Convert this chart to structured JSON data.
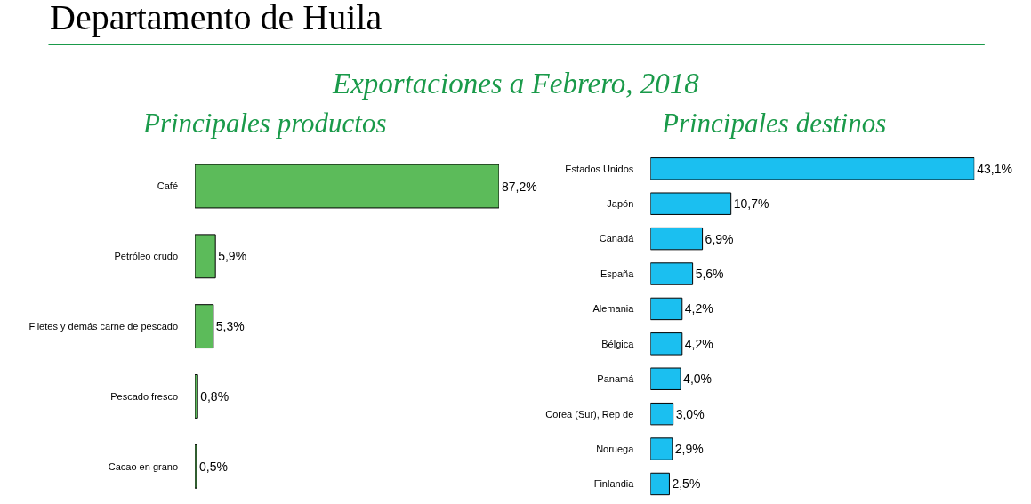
{
  "chart_data": [
    {
      "type": "bar",
      "orientation": "horizontal",
      "title": "Principales productos",
      "annotations": [
        "Departamento de Huila",
        "Exportaciones a Febrero, 2018"
      ],
      "categories": [
        "Café",
        "Petróleo crudo",
        "Filetes y demás carne de pescado",
        "Pescado fresco",
        "Cacao en grano"
      ],
      "series": [
        {
          "color": "#5cbb5a",
          "values": [
            87.2,
            5.9,
            5.3,
            0.8,
            0.5
          ],
          "value_labels": [
            "87,2%",
            "5,9%",
            "5,3%",
            "0,8%",
            "0,5%"
          ]
        }
      ]
    },
    {
      "type": "bar",
      "orientation": "horizontal",
      "title": "Principales destinos",
      "categories": [
        "Estados Unidos",
        "Japón",
        "Canadá",
        "España",
        "Alemania",
        "Bélgica",
        "Panamá",
        "Corea (Sur), Rep de",
        "Noruega",
        "Finlandia"
      ],
      "series": [
        {
          "color": "#1bbff0",
          "values": [
            43.1,
            10.7,
            6.9,
            5.6,
            4.2,
            4.2,
            4.0,
            3.0,
            2.9,
            2.5
          ],
          "value_labels": [
            "43,1%",
            "10,7%",
            "6,9%",
            "5,6%",
            "4,2%",
            "4,2%",
            "4,0%",
            "3,0%",
            "2,9%",
            "2,5%"
          ]
        }
      ]
    }
  ]
}
